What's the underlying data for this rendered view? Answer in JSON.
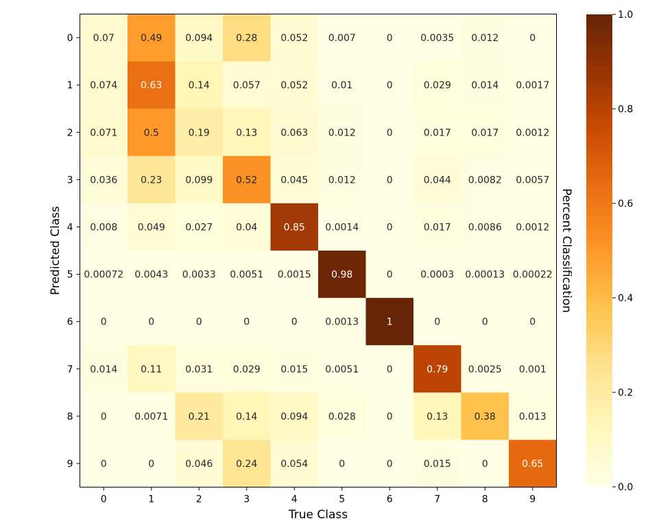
{
  "chart_data": {
    "type": "heatmap",
    "title": "",
    "xlabel": "True Class",
    "ylabel": "Predicted Class",
    "x_categories": [
      "0",
      "1",
      "2",
      "3",
      "4",
      "5",
      "6",
      "7",
      "8",
      "9"
    ],
    "y_categories": [
      "0",
      "1",
      "2",
      "3",
      "4",
      "5",
      "6",
      "7",
      "8",
      "9"
    ],
    "values": [
      [
        0.07,
        0.49,
        0.094,
        0.28,
        0.052,
        0.007,
        0,
        0.0035,
        0.012,
        0
      ],
      [
        0.074,
        0.63,
        0.14,
        0.057,
        0.052,
        0.01,
        0,
        0.029,
        0.014,
        0.0017
      ],
      [
        0.071,
        0.5,
        0.19,
        0.13,
        0.063,
        0.012,
        0,
        0.017,
        0.017,
        0.0012
      ],
      [
        0.036,
        0.23,
        0.099,
        0.52,
        0.045,
        0.012,
        0,
        0.044,
        0.0082,
        0.0057
      ],
      [
        0.008,
        0.049,
        0.027,
        0.04,
        0.85,
        0.0014,
        0,
        0.017,
        0.0086,
        0.0012
      ],
      [
        0.00072,
        0.0043,
        0.0033,
        0.0051,
        0.0015,
        0.98,
        0,
        0.0003,
        0.00013,
        0.00022
      ],
      [
        0,
        0,
        0,
        0,
        0,
        0.0013,
        1,
        0,
        0,
        0
      ],
      [
        0.014,
        0.11,
        0.031,
        0.029,
        0.015,
        0.0051,
        0,
        0.79,
        0.0025,
        0.001
      ],
      [
        0,
        0.0071,
        0.21,
        0.14,
        0.094,
        0.028,
        0,
        0.13,
        0.38,
        0.013
      ],
      [
        0,
        0,
        0.046,
        0.24,
        0.054,
        0,
        0,
        0.015,
        0,
        0.65
      ]
    ],
    "value_labels": [
      [
        "0.07",
        "0.49",
        "0.094",
        "0.28",
        "0.052",
        "0.007",
        "0",
        "0.0035",
        "0.012",
        "0"
      ],
      [
        "0.074",
        "0.63",
        "0.14",
        "0.057",
        "0.052",
        "0.01",
        "0",
        "0.029",
        "0.014",
        "0.0017"
      ],
      [
        "0.071",
        "0.5",
        "0.19",
        "0.13",
        "0.063",
        "0.012",
        "0",
        "0.017",
        "0.017",
        "0.0012"
      ],
      [
        "0.036",
        "0.23",
        "0.099",
        "0.52",
        "0.045",
        "0.012",
        "0",
        "0.044",
        "0.0082",
        "0.0057"
      ],
      [
        "0.008",
        "0.049",
        "0.027",
        "0.04",
        "0.85",
        "0.0014",
        "0",
        "0.017",
        "0.0086",
        "0.0012"
      ],
      [
        "0.00072",
        "0.0043",
        "0.0033",
        "0.0051",
        "0.0015",
        "0.98",
        "0",
        "0.0003",
        "0.00013",
        "0.00022"
      ],
      [
        "0",
        "0",
        "0",
        "0",
        "0",
        "0.0013",
        "1",
        "0",
        "0",
        "0"
      ],
      [
        "0.014",
        "0.11",
        "0.031",
        "0.029",
        "0.015",
        "0.0051",
        "0",
        "0.79",
        "0.0025",
        "0.001"
      ],
      [
        "0",
        "0.0071",
        "0.21",
        "0.14",
        "0.094",
        "0.028",
        "0",
        "0.13",
        "0.38",
        "0.013"
      ],
      [
        "0",
        "0",
        "0.046",
        "0.24",
        "0.054",
        "0",
        "0",
        "0.015",
        "0",
        "0.65"
      ]
    ],
    "colormap": "YlOrBr",
    "colormap_stops": [
      "#ffffe5",
      "#fff7bc",
      "#fee391",
      "#fec44f",
      "#fe9929",
      "#ec7014",
      "#cc4c02",
      "#993404",
      "#662506"
    ],
    "vmin": 0,
    "vmax": 1,
    "colorbar": {
      "label": "Percent Classification",
      "ticks": [
        0.0,
        0.2,
        0.4,
        0.6,
        0.8,
        1.0
      ],
      "tick_labels": [
        "0.0",
        "0.2",
        "0.4",
        "0.6",
        "0.8",
        "1.0"
      ]
    },
    "text_color_dark": "#262626",
    "text_color_light": "#ffffff",
    "grid": false,
    "legend": "none"
  }
}
